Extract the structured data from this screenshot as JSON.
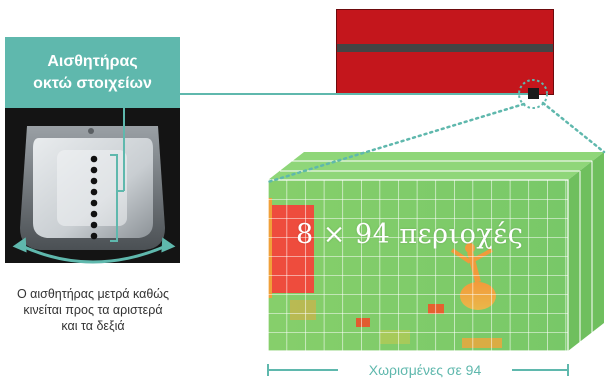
{
  "sensor_label": {
    "line1": "Αισθητήρας",
    "line2": "οκτώ στοιχείων"
  },
  "caption": {
    "line1": "Ο αισθητήρας μετρά καθώς",
    "line2": "κινείται προς τα αριστερά",
    "line3": "και τα δεξιά"
  },
  "block_label": "8 × 94 περιοχές",
  "bottom_label": "Χωρισμένες σε 94",
  "sensor_elements": 8,
  "colors": {
    "accent_teal": "#5fb8ad",
    "device_red": "#c4161c",
    "thermal_green": "#7ccf6a",
    "thermal_red": "#ec4a3c"
  }
}
